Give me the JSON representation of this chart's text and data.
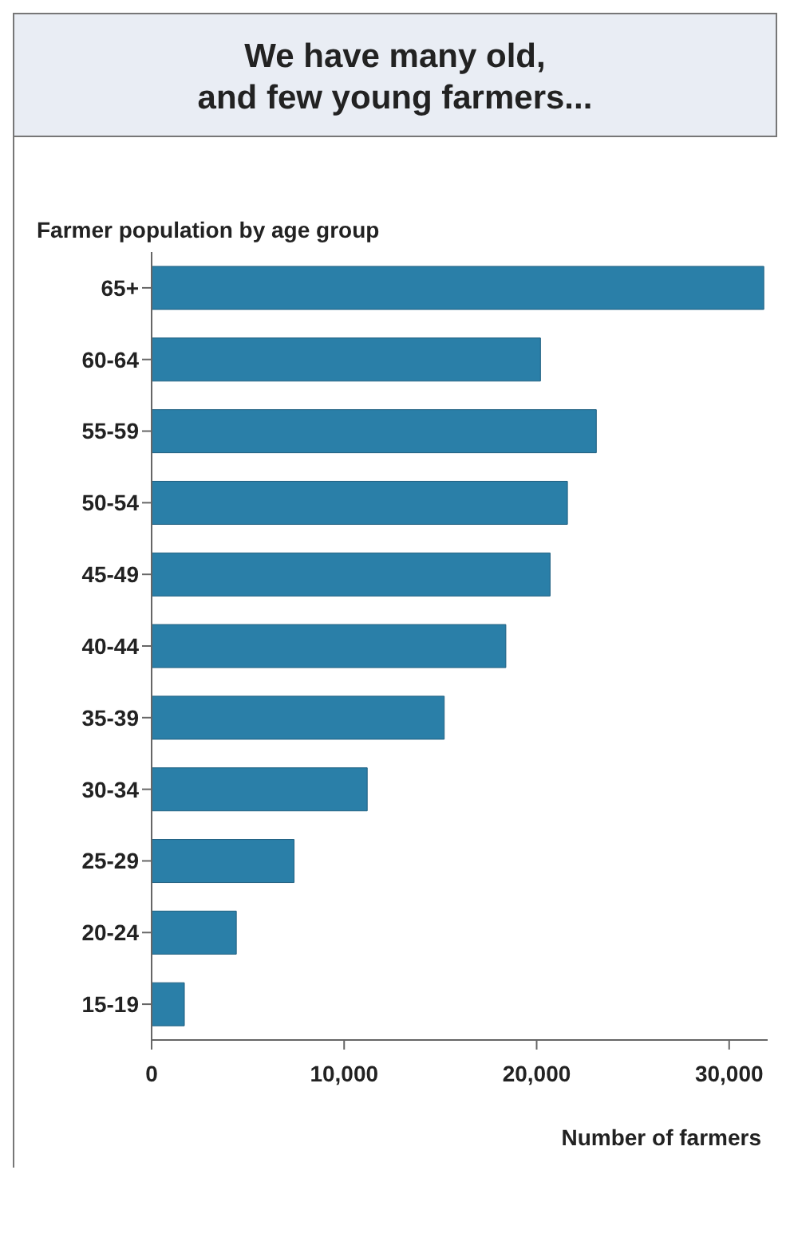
{
  "chart_data": {
    "type": "bar",
    "orientation": "horizontal",
    "title": "We have many old,\nand few young farmers...",
    "subtitle": "Farmer population by age group",
    "xlabel": "Number of farmers",
    "categories": [
      "65+",
      "60-64",
      "55-59",
      "50-54",
      "45-49",
      "40-44",
      "35-39",
      "30-34",
      "25-29",
      "20-24",
      "15-19"
    ],
    "values": [
      31800,
      20200,
      23100,
      21600,
      20700,
      18400,
      15200,
      11200,
      7400,
      4400,
      1700
    ],
    "color": "#2a7fa8",
    "xlim": [
      0,
      32000
    ],
    "xticks": [
      {
        "value": 0,
        "label": "0"
      },
      {
        "value": 10000,
        "label": "10,000"
      },
      {
        "value": 20000,
        "label": "20,000"
      },
      {
        "value": 30000,
        "label": "30,000"
      }
    ],
    "grid": false,
    "legend": false
  }
}
